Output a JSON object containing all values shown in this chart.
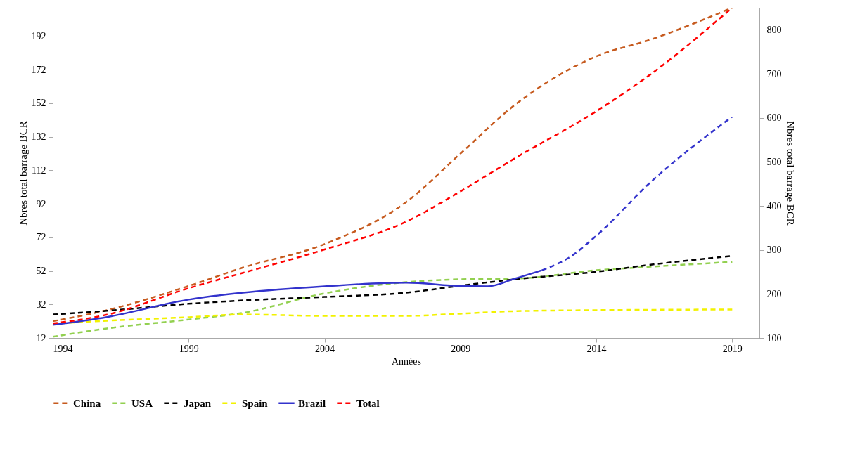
{
  "chart_data": {
    "type": "line",
    "xlabel": "Années",
    "ylabel": "Nbres total barrage BCR",
    "y2label": "Nbres total barrage BCR",
    "x": [
      1994,
      1996,
      1999,
      2001,
      2004,
      2007,
      2009,
      2011,
      2014,
      2016,
      2019
    ],
    "xlim": [
      1994,
      2020
    ],
    "xticks": [
      1994,
      1999,
      2004,
      2009,
      2014,
      2019
    ],
    "ylim": [
      12,
      209
    ],
    "yticks": [
      12,
      32,
      52,
      72,
      92,
      112,
      132,
      152,
      172,
      192
    ],
    "y2lim": [
      100,
      850
    ],
    "y2ticks": [
      100,
      200,
      300,
      400,
      500,
      600,
      700,
      800
    ],
    "legend": "bottom",
    "line_style": "dashed",
    "marker": "none",
    "series": [
      {
        "name": "China",
        "color": "#c65a1e",
        "values": [
          22,
          28.6,
          43,
          54,
          68,
          93,
          122,
          151,
          180,
          190,
          209
        ]
      },
      {
        "name": "USA",
        "color": "#92d050",
        "values": [
          12.7,
          17.7,
          23,
          27,
          38.6,
          45.3,
          47,
          47.4,
          52.4,
          54.5,
          57.4
        ]
      },
      {
        "name": "Japan",
        "color": "#000000",
        "values": [
          26,
          28.2,
          32.4,
          34.4,
          36.5,
          39,
          43.2,
          47,
          51.5,
          55.7,
          61
        ]
      },
      {
        "name": "Spain",
        "color": "#f2f200",
        "values": [
          20.5,
          22.3,
          24.4,
          26,
          25.2,
          25.2,
          26.5,
          28,
          28.6,
          28.8,
          29
        ]
      },
      {
        "name": "Brazil",
        "color": "#3333cc",
        "line_style": "solid",
        "x": [
          1994,
          1996,
          1999,
          2001,
          2004,
          2007,
          2009,
          2010,
          2011,
          2012
        ],
        "values": [
          19.8,
          24.5,
          34.9,
          39,
          42.8,
          45,
          43,
          42.8,
          47.4,
          52.4
        ]
      },
      {
        "color": "#3333cc",
        "line_style": "dashed",
        "x": [
          2012,
          2013,
          2014,
          2016,
          2019
        ],
        "values": [
          52.4,
          60,
          73,
          105,
          144
        ]
      },
      {
        "name": "Total",
        "color": "#ff0000",
        "axis": "y2",
        "values": [
          133,
          153,
          213,
          248,
          301,
          364,
          433,
          508,
          615,
          699,
          850
        ]
      }
    ]
  }
}
